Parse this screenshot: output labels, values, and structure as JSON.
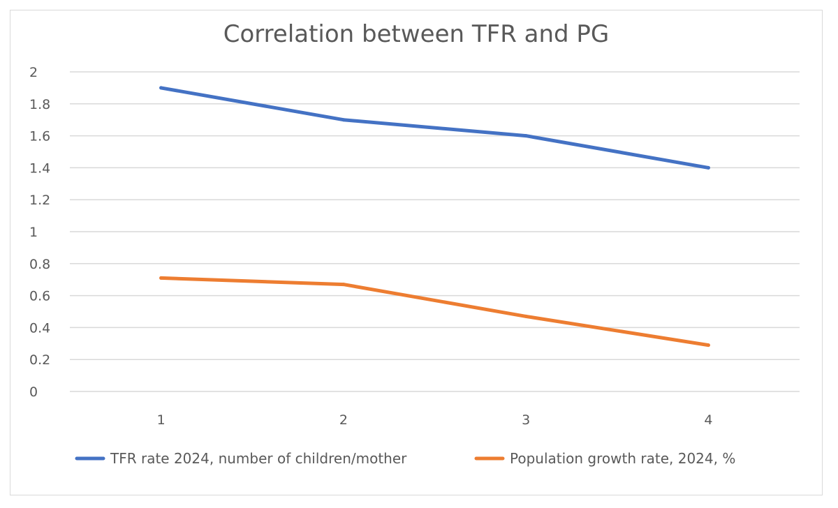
{
  "chart_data": {
    "type": "line",
    "title": "Correlation between TFR and PG",
    "categories": [
      "1",
      "2",
      "3",
      "4"
    ],
    "ylim": [
      0,
      2
    ],
    "y_ticks": [
      "0",
      "0.2",
      "0.4",
      "0.6",
      "0.8",
      "1",
      "1.2",
      "1.4",
      "1.6",
      "1.8",
      "2"
    ],
    "grid": true,
    "legend_position": "bottom",
    "series": [
      {
        "name": "TFR rate 2024, number of children/mother",
        "color": "#4472C4",
        "values": [
          1.9,
          1.7,
          1.6,
          1.4
        ]
      },
      {
        "name": "Population growth rate, 2024, %",
        "color": "#ED7D31",
        "values": [
          0.71,
          0.67,
          0.47,
          0.29
        ]
      }
    ]
  }
}
